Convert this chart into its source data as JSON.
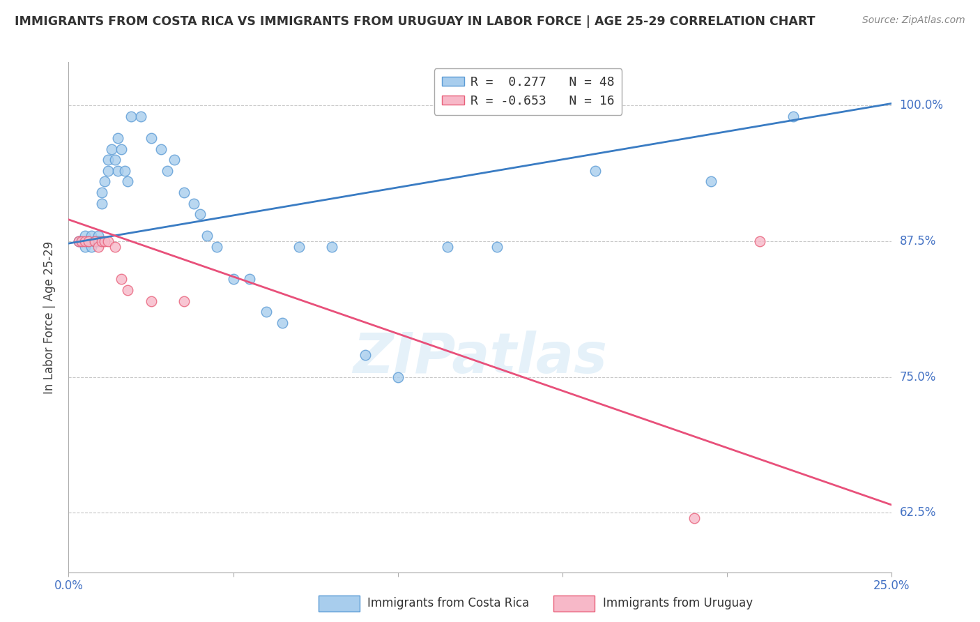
{
  "title": "IMMIGRANTS FROM COSTA RICA VS IMMIGRANTS FROM URUGUAY IN LABOR FORCE | AGE 25-29 CORRELATION CHART",
  "source": "Source: ZipAtlas.com",
  "ylabel": "In Labor Force | Age 25-29",
  "xlim": [
    0.0,
    0.25
  ],
  "ylim": [
    0.57,
    1.04
  ],
  "blue_R": 0.277,
  "blue_N": 48,
  "pink_R": -0.653,
  "pink_N": 16,
  "blue_color": "#A8CDED",
  "pink_color": "#F7B8C8",
  "blue_edge_color": "#5B9BD5",
  "pink_edge_color": "#E8607A",
  "blue_line_color": "#3A7CC3",
  "pink_line_color": "#E8507A",
  "blue_scatter_x": [
    0.003,
    0.004,
    0.005,
    0.005,
    0.006,
    0.006,
    0.007,
    0.007,
    0.008,
    0.008,
    0.009,
    0.009,
    0.01,
    0.01,
    0.011,
    0.012,
    0.012,
    0.013,
    0.014,
    0.015,
    0.015,
    0.016,
    0.017,
    0.018,
    0.019,
    0.022,
    0.025,
    0.028,
    0.03,
    0.032,
    0.035,
    0.038,
    0.04,
    0.042,
    0.045,
    0.05,
    0.055,
    0.06,
    0.065,
    0.07,
    0.08,
    0.09,
    0.1,
    0.115,
    0.13,
    0.16,
    0.195,
    0.22
  ],
  "blue_scatter_y": [
    0.875,
    0.875,
    0.88,
    0.87,
    0.875,
    0.875,
    0.88,
    0.87,
    0.875,
    0.875,
    0.88,
    0.875,
    0.91,
    0.92,
    0.93,
    0.94,
    0.95,
    0.96,
    0.95,
    0.94,
    0.97,
    0.96,
    0.94,
    0.93,
    0.99,
    0.99,
    0.97,
    0.96,
    0.94,
    0.95,
    0.92,
    0.91,
    0.9,
    0.88,
    0.87,
    0.84,
    0.84,
    0.81,
    0.8,
    0.87,
    0.87,
    0.77,
    0.75,
    0.87,
    0.87,
    0.94,
    0.93,
    0.99
  ],
  "pink_scatter_x": [
    0.003,
    0.004,
    0.005,
    0.006,
    0.008,
    0.009,
    0.01,
    0.011,
    0.012,
    0.014,
    0.016,
    0.018,
    0.025,
    0.035,
    0.19,
    0.21
  ],
  "pink_scatter_y": [
    0.875,
    0.875,
    0.875,
    0.875,
    0.875,
    0.87,
    0.875,
    0.875,
    0.875,
    0.87,
    0.84,
    0.83,
    0.82,
    0.82,
    0.62,
    0.875
  ],
  "blue_line_x0": 0.0,
  "blue_line_y0": 0.873,
  "blue_line_x1": 0.25,
  "blue_line_y1": 1.002,
  "pink_line_x0": 0.0,
  "pink_line_y0": 0.895,
  "pink_line_x1": 0.25,
  "pink_line_y1": 0.632,
  "yticks": [
    0.625,
    0.75,
    0.875,
    1.0
  ],
  "ytick_labels": [
    "62.5%",
    "75.0%",
    "87.5%",
    "100.0%"
  ],
  "xticks": [
    0.0,
    0.05,
    0.1,
    0.15,
    0.2,
    0.25
  ],
  "xtick_labels": [
    "0.0%",
    "",
    "",
    "",
    "",
    "25.0%"
  ],
  "grid_color": "#c8c8c8",
  "background_color": "#ffffff",
  "watermark": "ZIPatlas",
  "legend_blue_label": "R =  0.277   N = 48",
  "legend_pink_label": "R = -0.653   N = 16",
  "title_color": "#333333",
  "right_label_color": "#4472C4",
  "bottom_label_color": "#4472C4",
  "source_color": "#888888"
}
